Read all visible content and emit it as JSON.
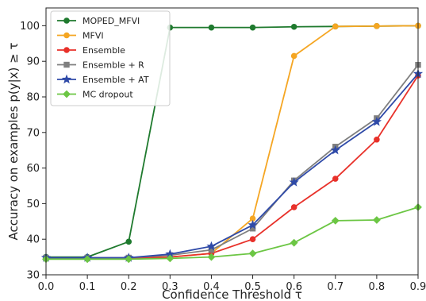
{
  "chart_data": {
    "type": "line",
    "xlabel": "Confidence Threshold τ",
    "ylabel": "Accuracy on examples p(y|x) ≥ τ",
    "x": [
      0.0,
      0.1,
      0.2,
      0.3,
      0.4,
      0.5,
      0.6,
      0.7,
      0.8,
      0.9
    ],
    "xticks": [
      "0.0",
      "0.1",
      "0.2",
      "0.3",
      "0.4",
      "0.5",
      "0.6",
      "0.7",
      "0.8",
      "0.9"
    ],
    "yticks": [
      "30",
      "40",
      "50",
      "60",
      "70",
      "80",
      "90",
      "100"
    ],
    "xlim": [
      0.0,
      0.9
    ],
    "ylim": [
      30,
      105
    ],
    "grid": false,
    "legend_position": "top-left",
    "series": [
      {
        "name": "MOPED_MFVI",
        "color": "#1f7a2e",
        "marker": "circle",
        "values": [
          35.0,
          35.0,
          39.3,
          99.5,
          99.5,
          99.5,
          99.7,
          99.8,
          99.9,
          100.0
        ]
      },
      {
        "name": "MFVI",
        "color": "#f5a623",
        "marker": "circle",
        "values": [
          34.8,
          34.8,
          34.8,
          35.0,
          36.0,
          45.8,
          91.5,
          99.8,
          99.9,
          100.0
        ]
      },
      {
        "name": "Ensemble",
        "color": "#e8312a",
        "marker": "circle",
        "values": [
          34.6,
          34.6,
          34.6,
          35.0,
          36.0,
          40.0,
          49.0,
          57.0,
          68.0,
          86.0
        ]
      },
      {
        "name": "Ensemble + R",
        "color": "#7f7f7f",
        "marker": "square",
        "values": [
          34.8,
          34.8,
          34.8,
          35.5,
          37.0,
          43.0,
          56.5,
          66.0,
          74.0,
          89.0
        ]
      },
      {
        "name": "Ensemble + AT",
        "color": "#2f4aa8",
        "marker": "star",
        "values": [
          34.8,
          34.8,
          34.8,
          35.8,
          38.0,
          44.0,
          56.0,
          65.0,
          73.0,
          86.5
        ]
      },
      {
        "name": "MC dropout",
        "color": "#6cc644",
        "marker": "diamond",
        "values": [
          34.4,
          34.4,
          34.4,
          34.6,
          35.0,
          36.0,
          39.0,
          45.2,
          45.4,
          49.0
        ]
      }
    ]
  }
}
